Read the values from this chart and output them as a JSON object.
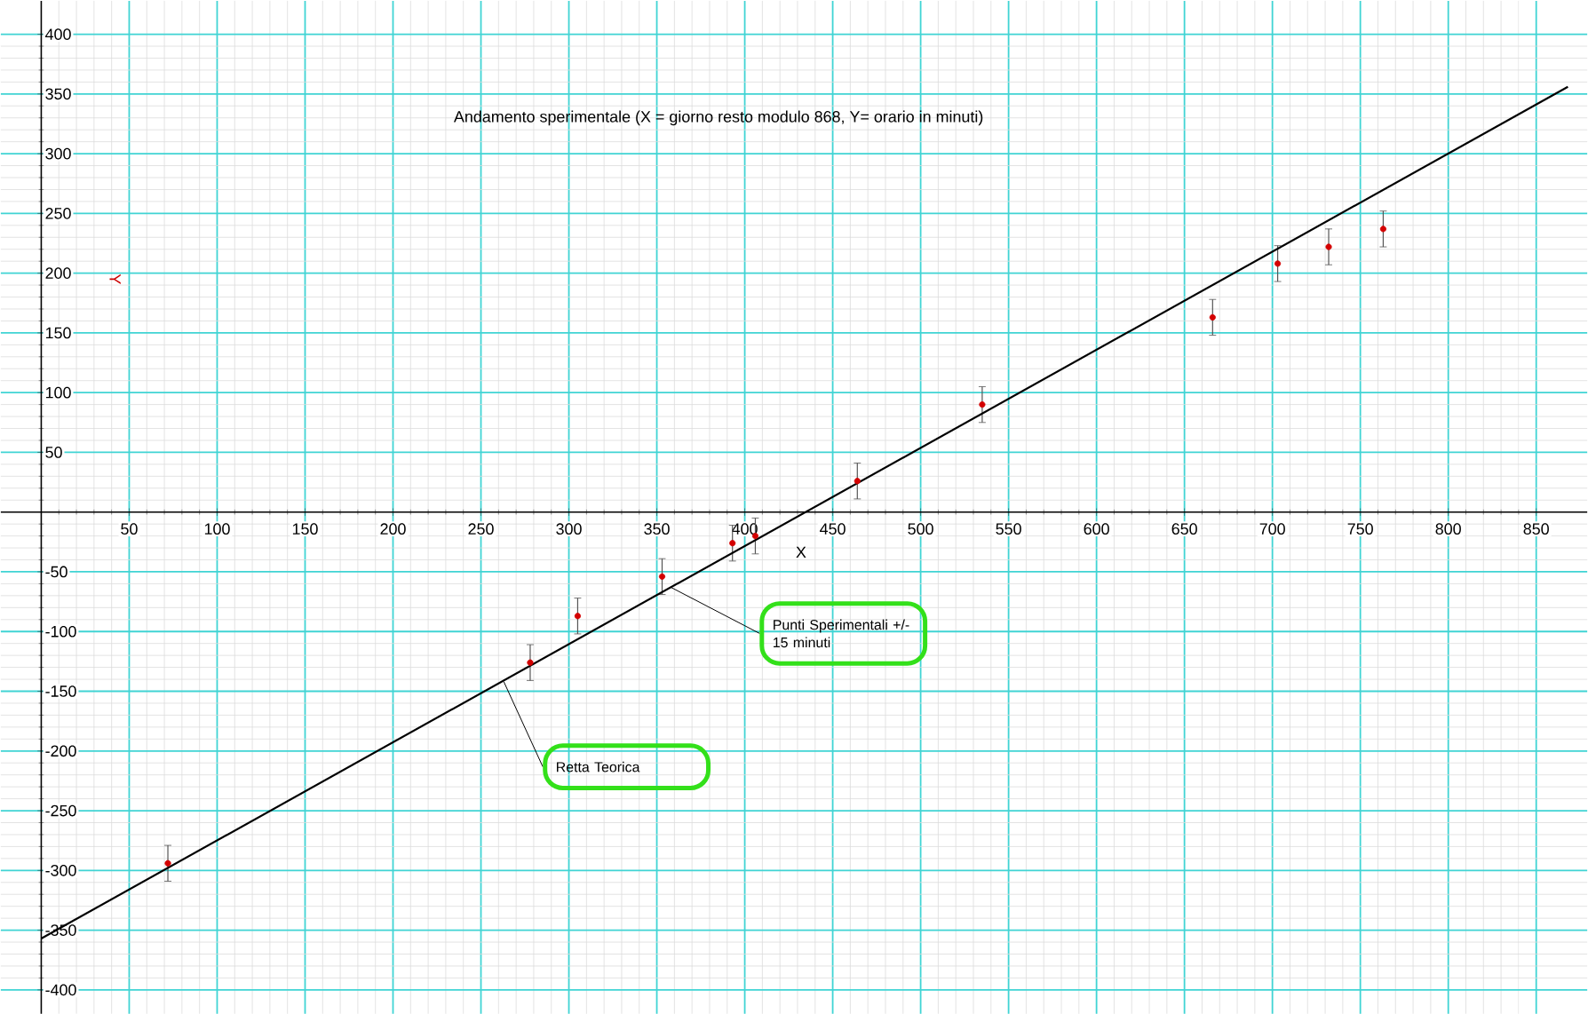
{
  "chart_data": {
    "type": "scatter",
    "title": "Andamento sperimentale (X = giorno resto modulo 868, Y= orario in minuti)",
    "xlabel": "X",
    "ylabel": "Y",
    "x": [
      72,
      278,
      305,
      353,
      393,
      406,
      464,
      535,
      666,
      703,
      732,
      763
    ],
    "series": [
      {
        "color": "#d40000",
        "values": [
          -294,
          -126,
          -87,
          -54,
          -26,
          -20,
          26,
          90,
          163,
          208,
          222,
          237
        ],
        "errors": [
          15,
          15,
          15,
          15,
          15,
          15,
          15,
          15,
          15,
          15,
          15,
          15
        ]
      },
      {
        "type": "line",
        "color": "#000000",
        "marker": "none",
        "x": [
          0,
          868
        ],
        "values": [
          -357,
          356
        ]
      }
    ],
    "annotations": [
      {
        "text": "Retta Teorica",
        "x": 263,
        "y": -142
      },
      {
        "text": "Punti Sperimentali +/- 15 minuti",
        "x": 358,
        "y": -63
      }
    ],
    "xlim": [
      -23,
      879
    ],
    "ylim": [
      -420,
      428
    ],
    "xticks": [
      {
        "value": 0,
        "label": null
      },
      50,
      100,
      150,
      200,
      250,
      300,
      350,
      400,
      450,
      500,
      550,
      600,
      650,
      700,
      750,
      800,
      850
    ],
    "yticks": [
      -400,
      -350,
      -300,
      -250,
      -200,
      -150,
      -100,
      -50,
      {
        "value": 0,
        "label": null
      },
      50,
      100,
      150,
      200,
      250,
      300,
      350,
      400
    ],
    "grid": true,
    "marker": "circle"
  }
}
